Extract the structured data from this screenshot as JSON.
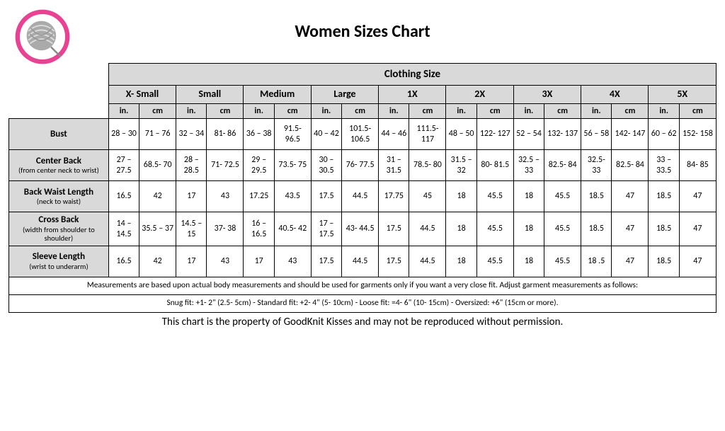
{
  "title": "Women Sizes Chart",
  "top_header": "Clothing Size",
  "logo": {
    "ring_color": "#e84393",
    "yarn_color": "#888888"
  },
  "sizes": [
    "X- Small",
    "Small",
    "Medium",
    "Large",
    "1X",
    "2X",
    "3X",
    "4X",
    "5X"
  ],
  "units": {
    "in": "in.",
    "cm": "cm"
  },
  "rows": [
    {
      "label_main": "Bust",
      "label_sub": "",
      "vals": [
        [
          "28 – 30",
          "71 – 76"
        ],
        [
          "32 – 34",
          "81- 86"
        ],
        [
          "36 – 38",
          "91.5- 96.5"
        ],
        [
          "40 – 42",
          "101.5- 106.5"
        ],
        [
          "44 – 46",
          "111.5- 117"
        ],
        [
          "48 – 50",
          "122- 127"
        ],
        [
          "52 – 54",
          "132- 137"
        ],
        [
          "56 – 58",
          "142- 147"
        ],
        [
          "60 – 62",
          "152- 158"
        ]
      ]
    },
    {
      "label_main": "Center Back",
      "label_sub": "(from center neck to wrist)",
      "vals": [
        [
          "27 – 27.5",
          "68.5- 70"
        ],
        [
          "28 – 28.5",
          "71- 72.5"
        ],
        [
          "29 – 29.5",
          "73.5- 75"
        ],
        [
          "30 – 30.5",
          "76- 77.5"
        ],
        [
          "31 – 31.5",
          "78.5- 80"
        ],
        [
          "31.5 – 32",
          "80- 81.5"
        ],
        [
          "32.5 – 33",
          "82.5- 84"
        ],
        [
          "32.5- 33",
          "82.5- 84"
        ],
        [
          "33 – 33.5",
          "84- 85"
        ]
      ]
    },
    {
      "label_main": "Back Waist Length",
      "label_sub": "(neck to waist)",
      "vals": [
        [
          "16.5",
          "42"
        ],
        [
          "17",
          "43"
        ],
        [
          "17.25",
          "43.5"
        ],
        [
          "17.5",
          "44.5"
        ],
        [
          "17.75",
          "45"
        ],
        [
          "18",
          "45.5"
        ],
        [
          "18",
          "45.5"
        ],
        [
          "18.5",
          "47"
        ],
        [
          "18.5",
          "47"
        ]
      ]
    },
    {
      "label_main": "Cross Back",
      "label_sub": "(width from shoulder to shoulder)",
      "vals": [
        [
          "14 – 14.5",
          "35.5 – 37"
        ],
        [
          "14.5 – 15",
          "37- 38"
        ],
        [
          "16 – 16.5",
          "40.5- 42"
        ],
        [
          "17 – 17.5",
          "43- 44.5"
        ],
        [
          "17.5",
          "44.5"
        ],
        [
          "18",
          "45.5"
        ],
        [
          "18",
          "45.5"
        ],
        [
          "18.5",
          "47"
        ],
        [
          "18.5",
          "47"
        ]
      ]
    },
    {
      "label_main": "Sleeve Length",
      "label_sub": "(wrist to underarm)",
      "vals": [
        [
          "16.5",
          "42"
        ],
        [
          "17",
          "43"
        ],
        [
          "17",
          "43"
        ],
        [
          "17.5",
          "44.5"
        ],
        [
          "17.5",
          "44.5"
        ],
        [
          "18",
          "45.5"
        ],
        [
          "18",
          "45.5"
        ],
        [
          "18 .5",
          "47"
        ],
        [
          "18.5",
          "47"
        ]
      ]
    }
  ],
  "notes": [
    "Measurements are based upon actual body measurements and should be used for garments only if you want a very close fit.  Adjust garment measurements as follows:",
    "Snug fit: +1- 2\" (2.5- 5cm) -   Standard fit: +2- 4\" (5- 10cm) -   Loose fit: =4- 6\" (10- 15cm) -   Oversized: +6\" (15cm or more)."
  ],
  "footer": "This chart is the property of GoodKnit Kisses and may not be reproduced without permission."
}
